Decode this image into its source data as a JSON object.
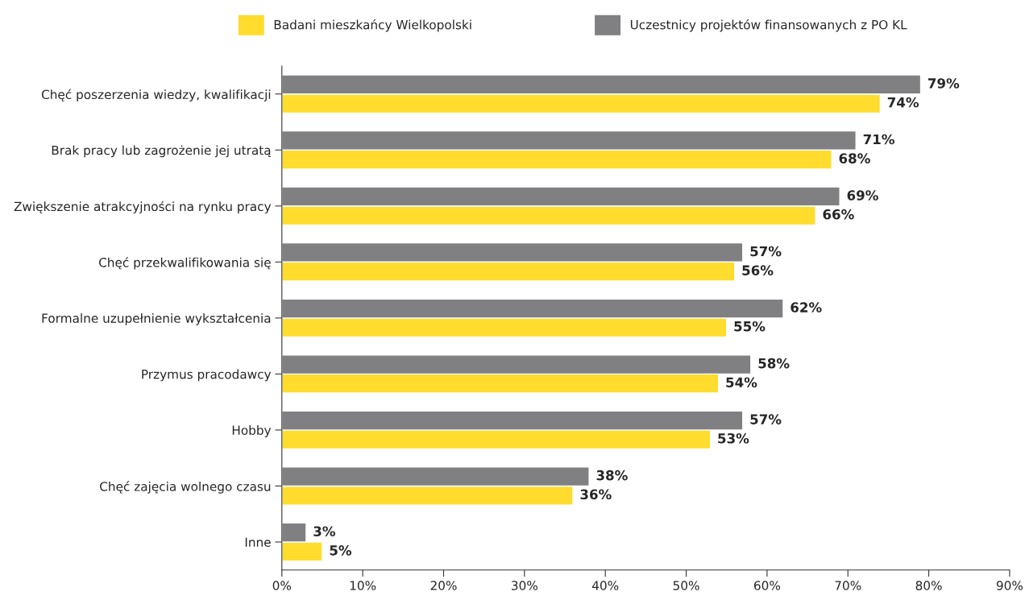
{
  "chart_data": {
    "type": "bar",
    "orientation": "horizontal",
    "categories": [
      "Chęć poszerzenia wiedzy, kwalifikacji",
      "Brak pracy lub zagrożenie jej utratą",
      "Zwiększenie atrakcyjności na rynku pracy",
      "Chęć przekwalifikowania się",
      "Formalne uzupełnienie wykształcenia",
      "Przymus pracodawcy",
      "Hobby",
      "Chęć zajęcia wolnego czasu",
      "Inne"
    ],
    "series": [
      {
        "name": "Badani mieszkańcy Wielkopolski",
        "color": "#ffdc2e",
        "values": [
          74,
          68,
          66,
          56,
          55,
          54,
          53,
          36,
          5
        ],
        "value_labels": [
          "74%",
          "68%",
          "66%",
          "56%",
          "55%",
          "54%",
          "53%",
          "36%",
          "5%"
        ]
      },
      {
        "name": "Uczestnicy projektów finansowanych z PO KL",
        "color": "#808083",
        "values": [
          79,
          71,
          69,
          57,
          62,
          58,
          57,
          38,
          3
        ],
        "value_labels": [
          "79%",
          "71%",
          "69%",
          "57%",
          "62%",
          "58%",
          "57%",
          "38%",
          "3%"
        ]
      }
    ],
    "xlim": [
      0,
      90
    ],
    "xticks": [
      {
        "value": 0,
        "label": "0%"
      },
      {
        "value": 10,
        "label": "10%"
      },
      {
        "value": 20,
        "label": "20%"
      },
      {
        "value": 30,
        "label": "30%"
      },
      {
        "value": 40,
        "label": "40%"
      },
      {
        "value": 50,
        "label": "50%"
      },
      {
        "value": 60,
        "label": "60%"
      },
      {
        "value": 70,
        "label": "70%"
      },
      {
        "value": 80,
        "label": "80%"
      },
      {
        "value": 90,
        "label": "90%"
      }
    ],
    "grid": false,
    "legend": "top"
  }
}
